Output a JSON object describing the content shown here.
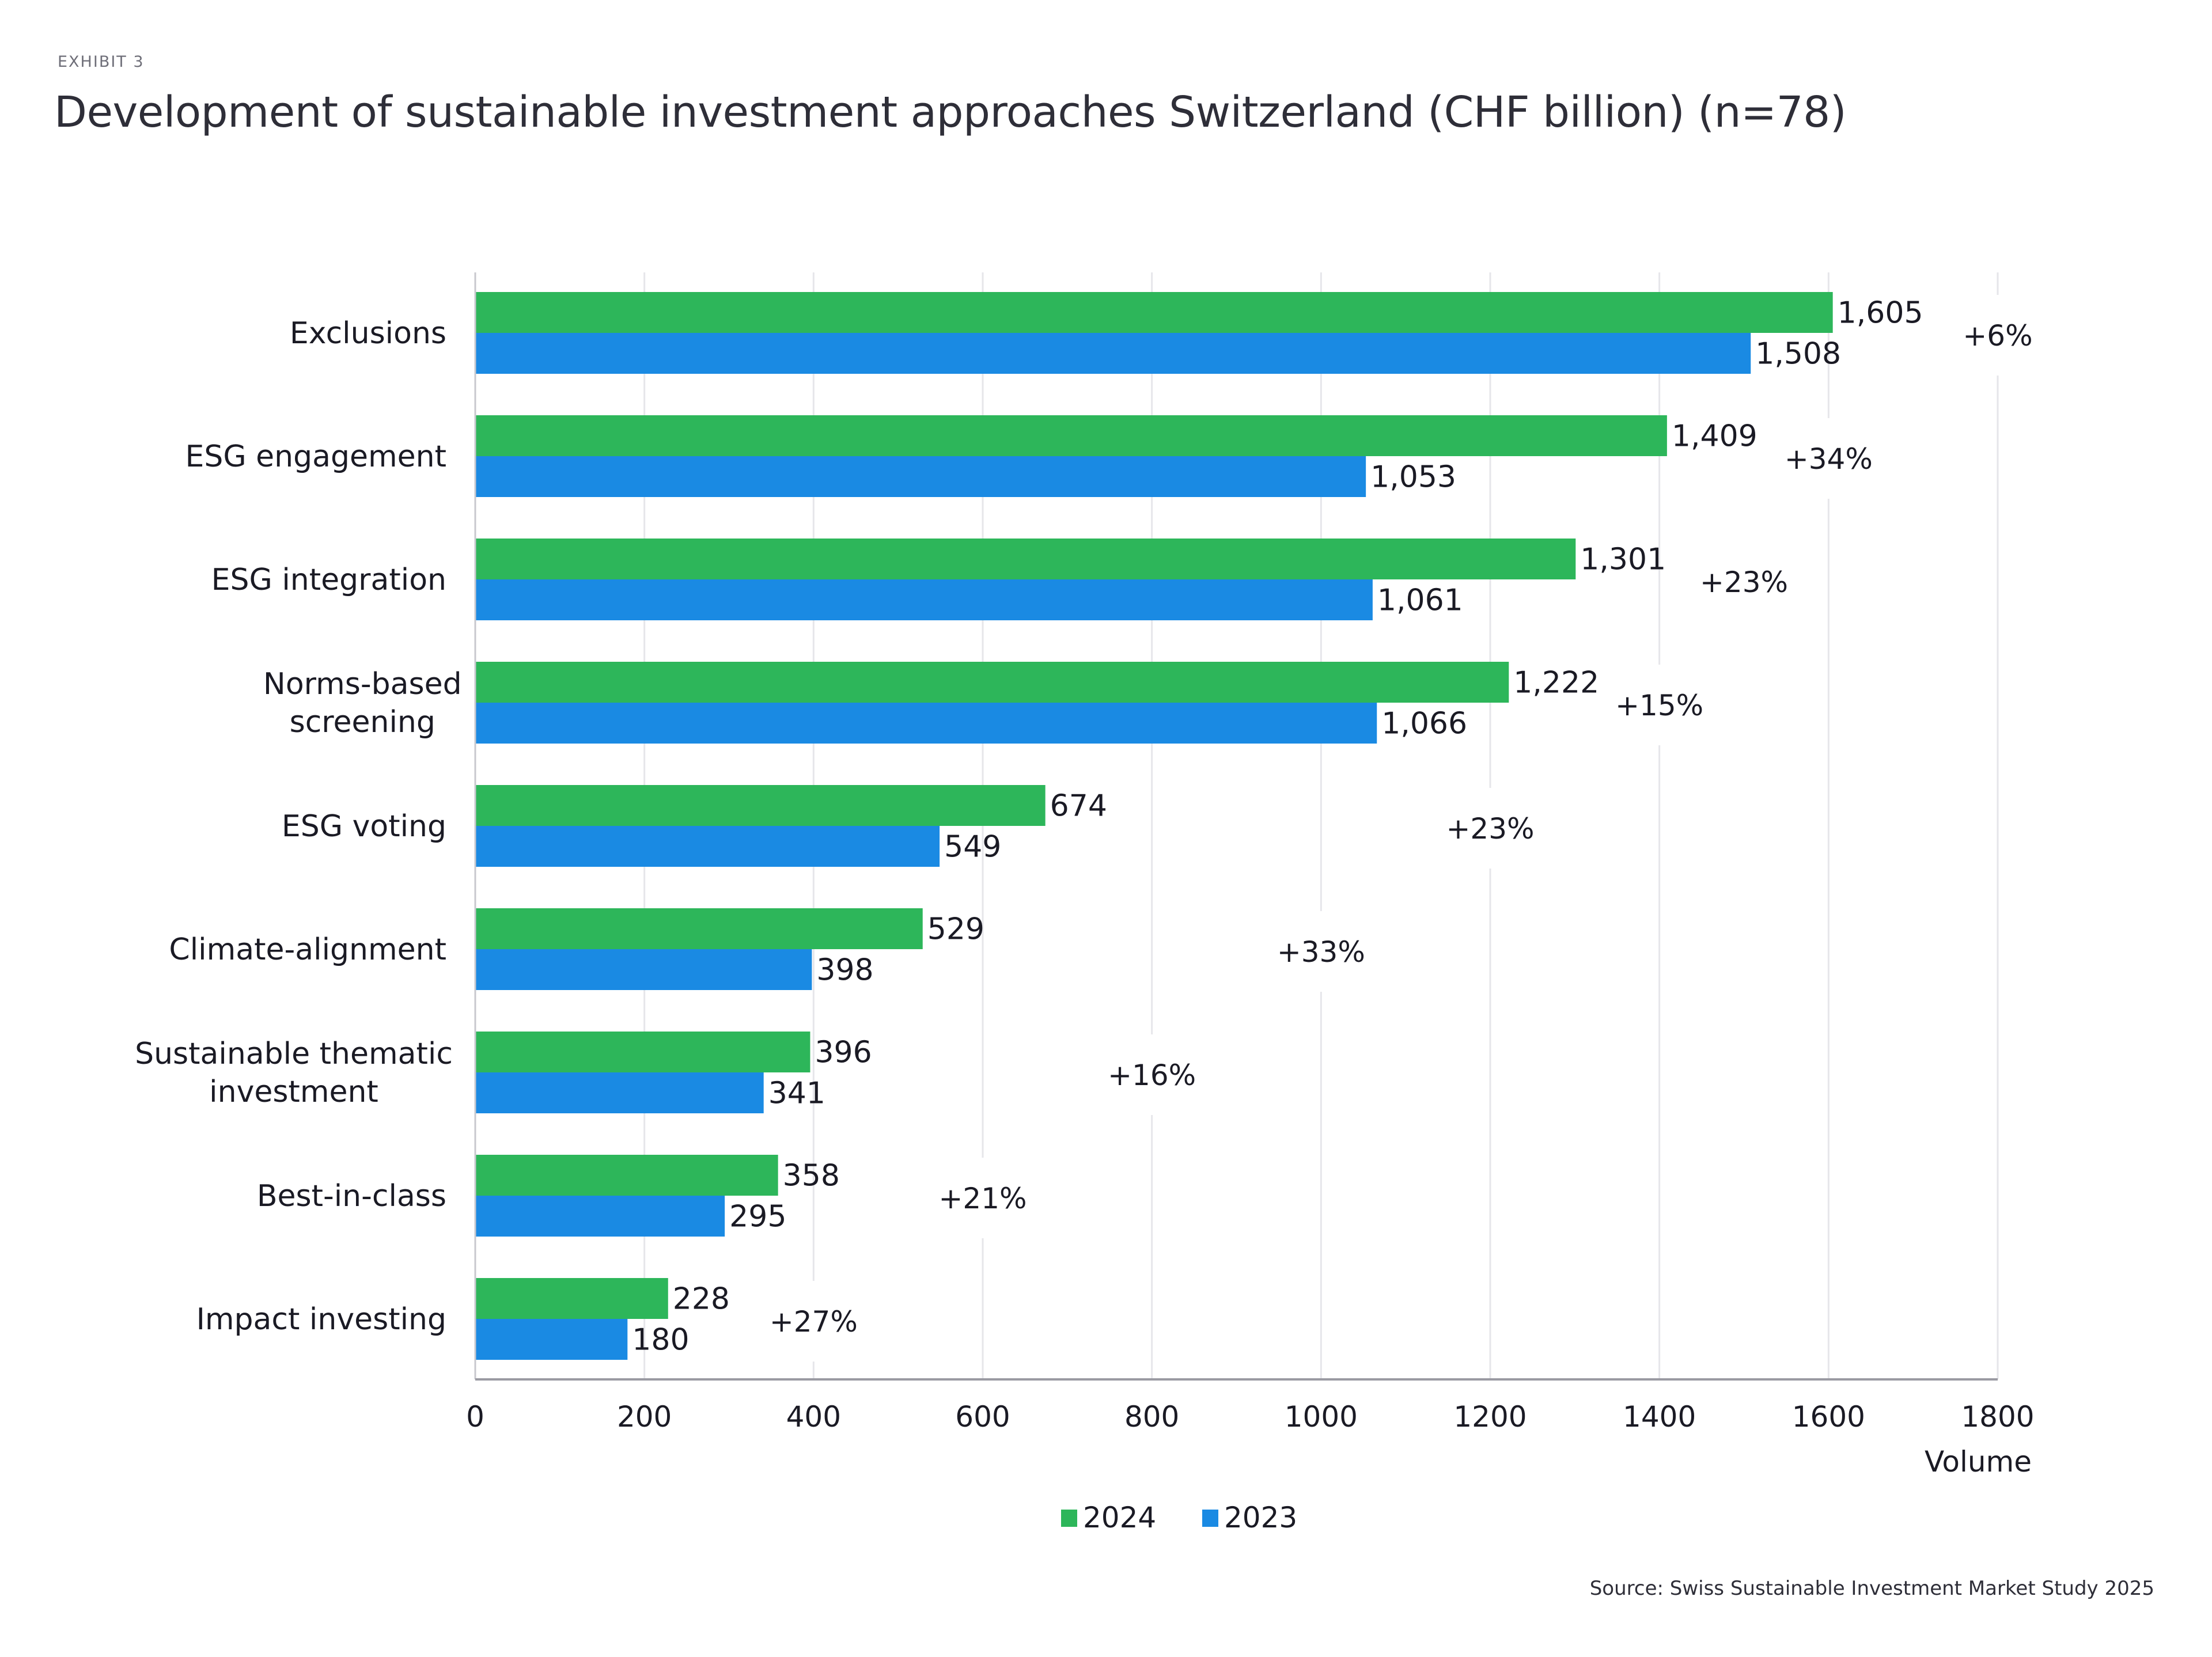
{
  "header": {
    "exhibit": "EXHIBIT 3",
    "title": "Development of sustainable investment approaches Switzerland (CHF billion) (n=78)"
  },
  "footer": {
    "source": "Source: Swiss Sustainable Investment Market Study 2025"
  },
  "chart_data": {
    "type": "bar",
    "orientation": "horizontal",
    "title": "Development of sustainable investment approaches Switzerland (CHF billion) (n=78)",
    "xlabel": "Volume",
    "ylabel": "",
    "xlim": [
      0,
      1800
    ],
    "xticks": [
      0,
      200,
      400,
      600,
      800,
      1000,
      1200,
      1400,
      1600,
      1800
    ],
    "grid": true,
    "legend_position": "bottom-center",
    "categories": [
      [
        "Exclusions"
      ],
      [
        "ESG engagement"
      ],
      [
        "ESG integration"
      ],
      [
        "Norms-based",
        "screening"
      ],
      [
        "ESG voting"
      ],
      [
        "Climate-alignment"
      ],
      [
        "Sustainable thematic",
        "investment"
      ],
      [
        "Best-in-class"
      ],
      [
        "Impact investing"
      ]
    ],
    "series": [
      {
        "name": "2024",
        "color": "#2db65a",
        "values": [
          1605,
          1409,
          1301,
          1222,
          674,
          529,
          396,
          358,
          228
        ],
        "labels": [
          "1,605",
          "1,409",
          "1,301",
          "1,222",
          "674",
          "529",
          "396",
          "358",
          "228"
        ]
      },
      {
        "name": "2023",
        "color": "#1a8ae3",
        "values": [
          1508,
          1053,
          1061,
          1066,
          549,
          398,
          341,
          295,
          180
        ],
        "labels": [
          "1,508",
          "1,053",
          "1,061",
          "1,066",
          "549",
          "398",
          "341",
          "295",
          "180"
        ]
      }
    ],
    "annotations": [
      {
        "category_index": 0,
        "text": "+6%",
        "x": 1800
      },
      {
        "category_index": 1,
        "text": "+34%",
        "x": 1600
      },
      {
        "category_index": 2,
        "text": "+23%",
        "x": 1500
      },
      {
        "category_index": 3,
        "text": "+15%",
        "x": 1400
      },
      {
        "category_index": 4,
        "text": "+23%",
        "x": 1200
      },
      {
        "category_index": 5,
        "text": "+33%",
        "x": 1000
      },
      {
        "category_index": 6,
        "text": "+16%",
        "x": 800
      },
      {
        "category_index": 7,
        "text": "+21%",
        "x": 600
      },
      {
        "category_index": 8,
        "text": "+27%",
        "x": 400
      }
    ]
  }
}
